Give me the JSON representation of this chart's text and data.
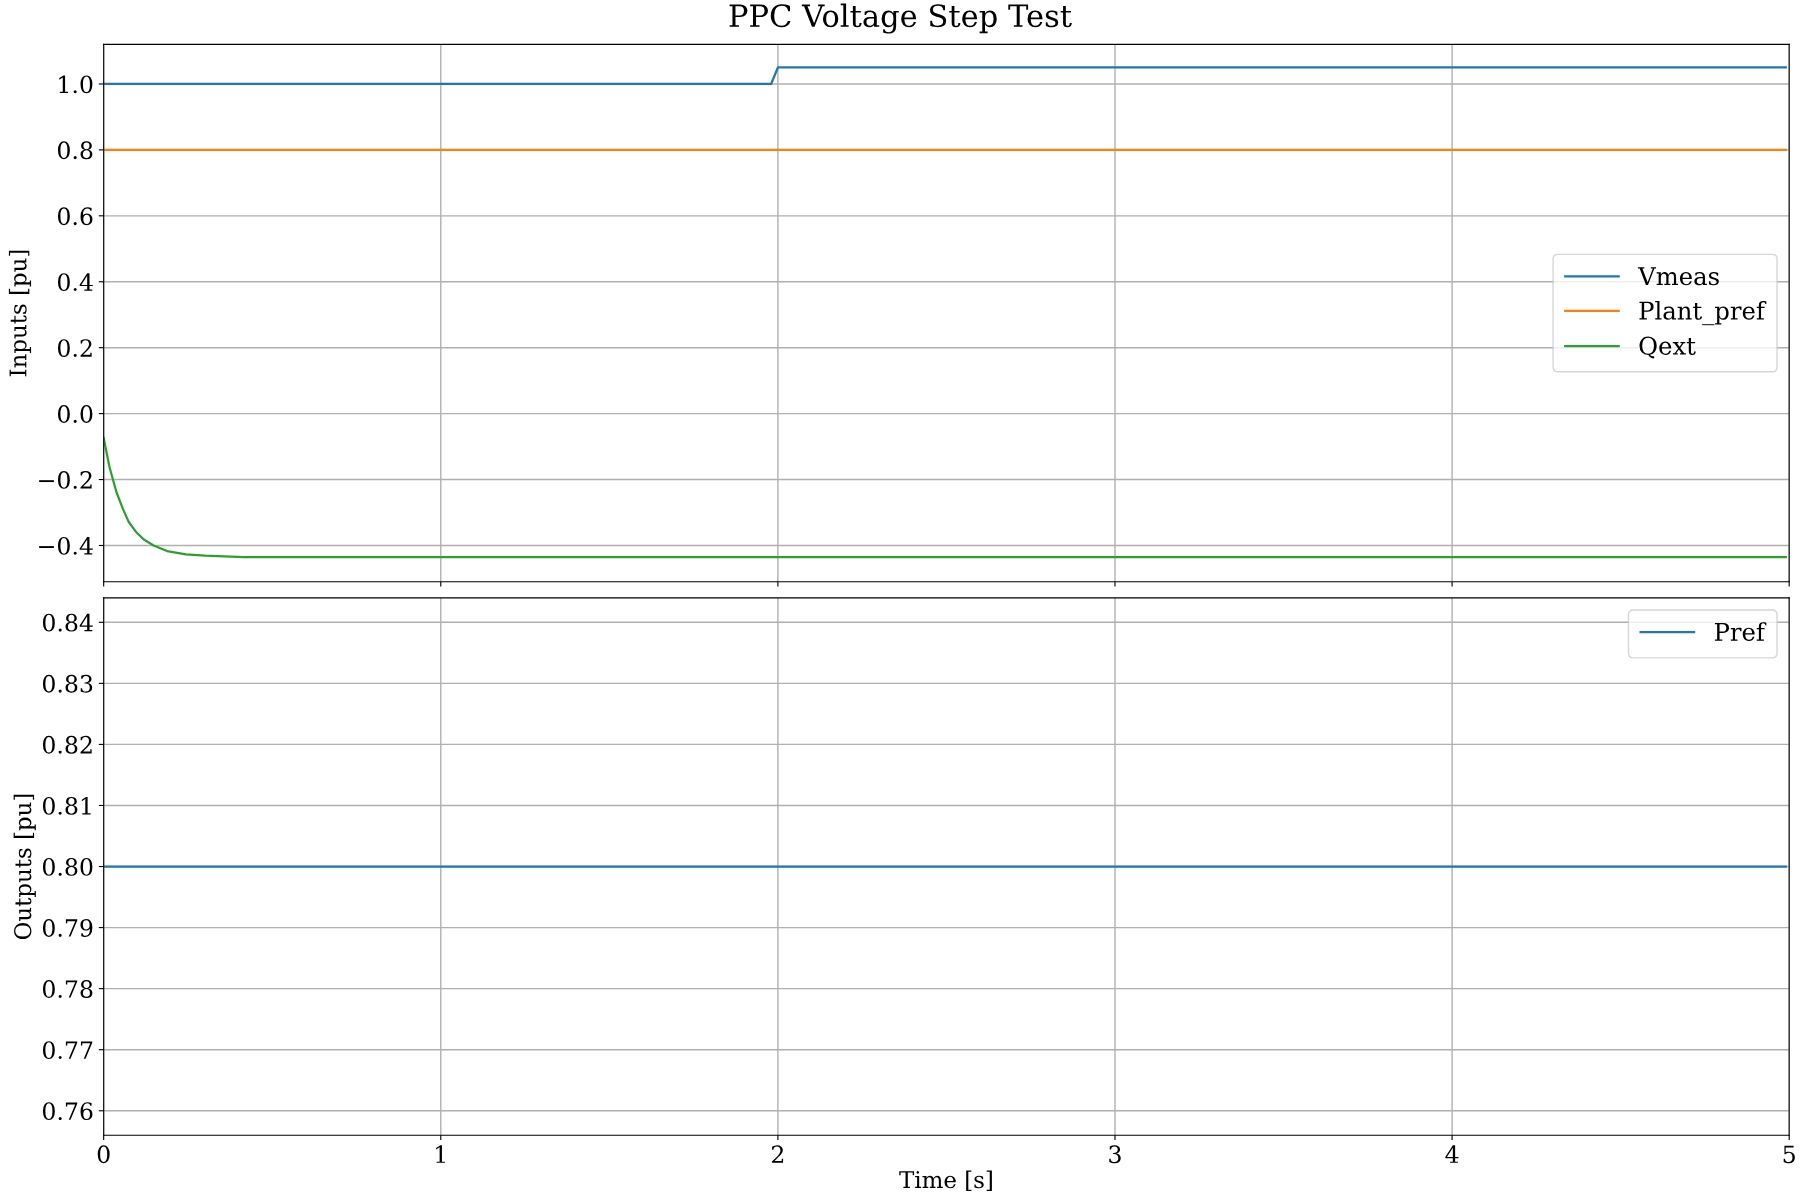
{
  "chart_data": [
    {
      "type": "line",
      "title": "PPC Voltage Step Test",
      "ylabel": "Inputs [pu]",
      "xlim": [
        0,
        5
      ],
      "xticks": [
        0,
        1,
        2,
        3,
        4,
        5
      ],
      "ylim": [
        -0.51,
        1.12
      ],
      "yticks": [
        {
          "value": -0.4,
          "label": "−0.4"
        },
        {
          "value": -0.2,
          "label": "−0.2"
        },
        {
          "value": 0,
          "label": "0.0"
        },
        0.2,
        0.4,
        0.6,
        0.8,
        {
          "value": 1,
          "label": "1.0"
        }
      ],
      "grid": true,
      "legend": "right",
      "tick_labels": "y",
      "series": [
        {
          "name": "Vmeas",
          "color": "#1f77b4",
          "x": [
            0,
            1.98,
            2.0,
            4.99
          ],
          "values": [
            1.0,
            1.0,
            1.05,
            1.05
          ]
        },
        {
          "name": "Plant_pref",
          "color": "#ff7f0e",
          "x": [
            0,
            4.99
          ],
          "values": [
            0.8,
            0.8
          ]
        },
        {
          "name": "Qext",
          "color": "#2ca02c",
          "x": [
            0,
            0.017,
            0.0375,
            0.057,
            0.074,
            0.097,
            0.119,
            0.148,
            0.188,
            0.244,
            0.301,
            0.415,
            4.99
          ],
          "values": [
            -0.074,
            -0.161,
            -0.237,
            -0.289,
            -0.328,
            -0.36,
            -0.382,
            -0.4,
            -0.417,
            -0.427,
            -0.431,
            -0.435,
            -0.435
          ]
        }
      ]
    },
    {
      "type": "line",
      "xlabel": "Time [s]",
      "ylabel": "Outputs [pu]",
      "xlim": [
        0,
        5
      ],
      "xticks": [
        0,
        1,
        2,
        3,
        4,
        5
      ],
      "ylim": [
        0.756,
        0.844
      ],
      "yticks": [
        0.76,
        0.77,
        0.78,
        0.79,
        {
          "value": 0.8,
          "label": "0.80"
        },
        0.81,
        0.82,
        0.83,
        0.84
      ],
      "grid": true,
      "legend": "top right",
      "series": [
        {
          "name": "Pref",
          "color": "#1f77b4",
          "x": [
            0,
            4.99
          ],
          "values": [
            0.8,
            0.8
          ]
        }
      ]
    }
  ]
}
